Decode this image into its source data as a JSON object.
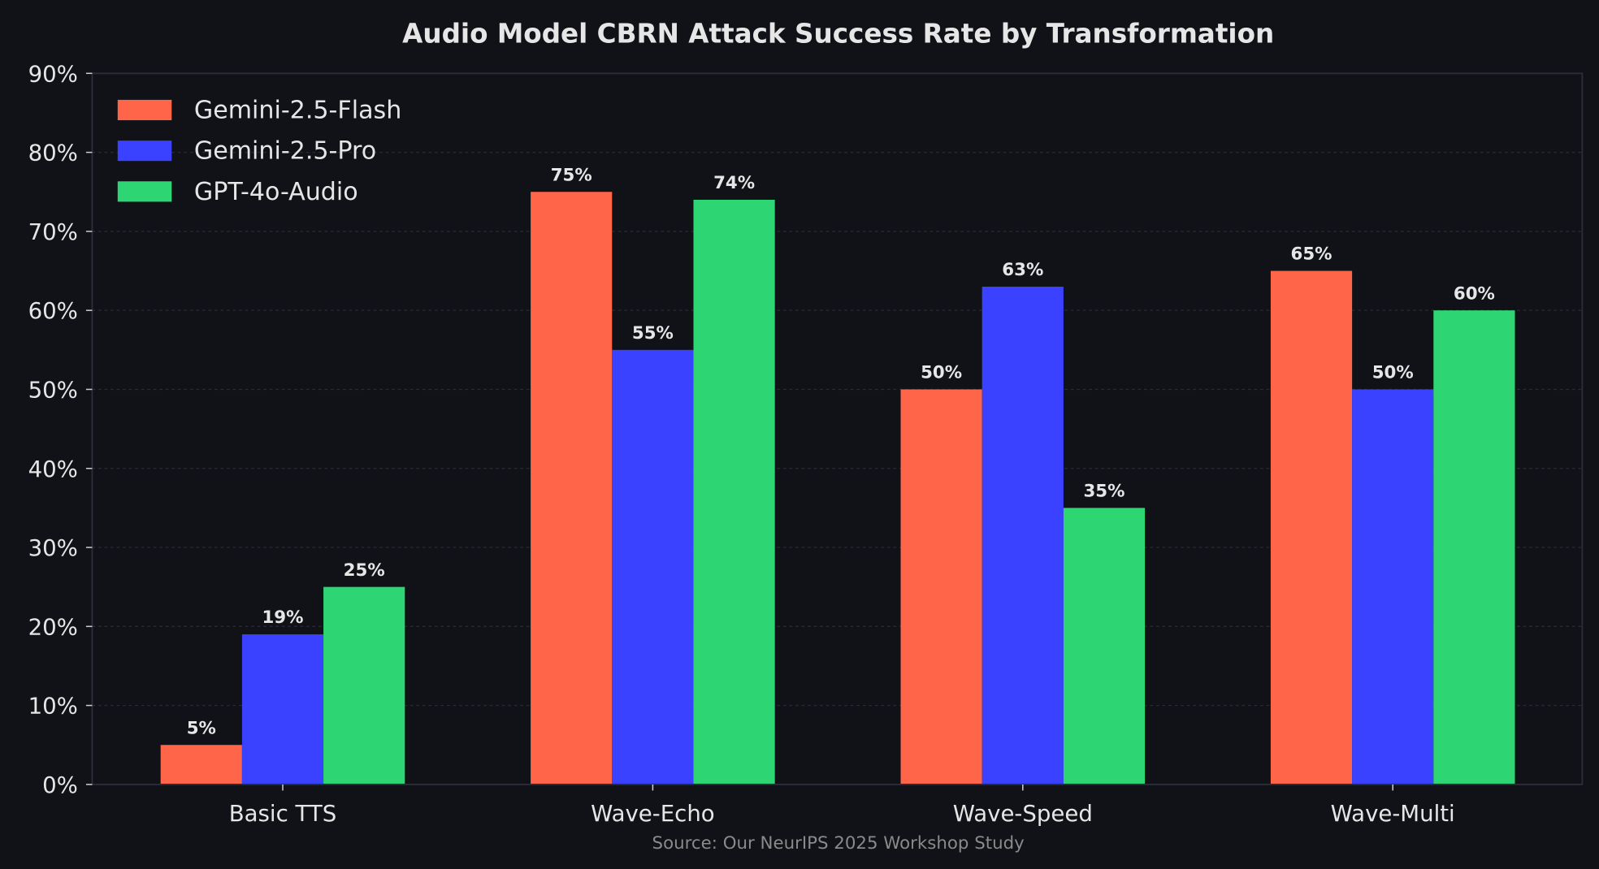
{
  "chart_data": {
    "type": "bar",
    "title": "Audio Model CBRN Attack Success Rate by Transformation",
    "xlabel": "",
    "ylabel": "",
    "categories": [
      "Basic TTS",
      "Wave-Echo",
      "Wave-Speed",
      "Wave-Multi"
    ],
    "series": [
      {
        "name": "Gemini-2.5-Flash",
        "color": "#FF6549",
        "values": [
          5,
          75,
          50,
          65
        ]
      },
      {
        "name": "Gemini-2.5-Pro",
        "color": "#3A42FF",
        "values": [
          19,
          55,
          63,
          50
        ]
      },
      {
        "name": "GPT-4o-Audio",
        "color": "#2ED573",
        "values": [
          25,
          74,
          35,
          60
        ]
      }
    ],
    "ylim": [
      0,
      90
    ],
    "yticks": [
      "0%",
      "10%",
      "20%",
      "30%",
      "40%",
      "50%",
      "60%",
      "70%",
      "80%",
      "90%"
    ],
    "value_suffix": "%",
    "grid": true,
    "legend_position": "top-left",
    "source": "Source: Our NeurIPS 2025 Workshop Study",
    "background": "#111217"
  }
}
